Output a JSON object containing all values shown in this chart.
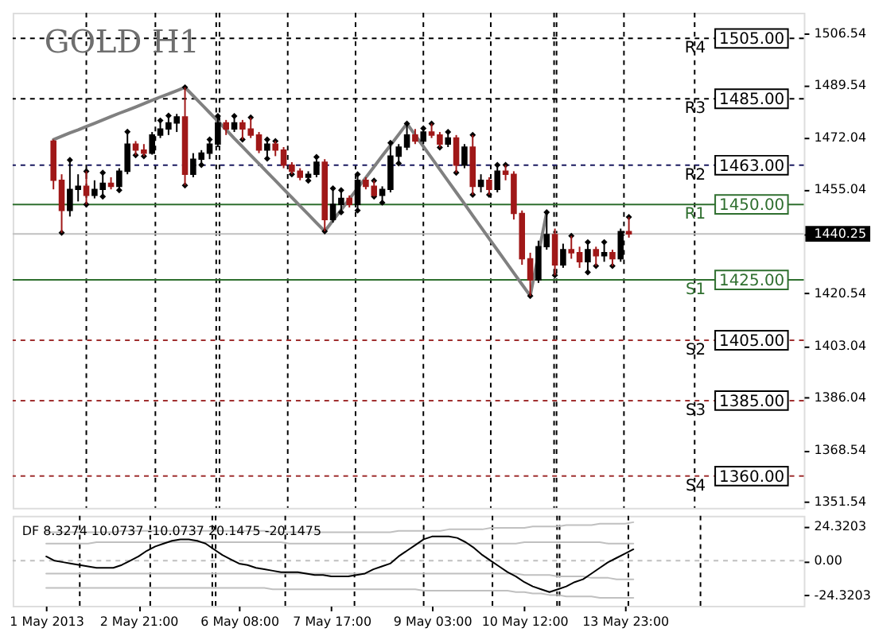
{
  "chart_data": [
    {
      "type": "candlestick",
      "title": "GOLD H1",
      "categories": [
        null,
        null,
        null,
        null,
        null,
        null,
        null,
        null,
        null,
        null,
        null,
        null,
        null,
        null,
        null,
        null,
        null,
        null,
        null,
        null,
        null,
        null,
        null,
        null,
        null,
        null,
        null,
        null,
        null,
        null,
        null,
        null,
        null,
        null,
        null,
        null,
        null,
        null,
        null,
        null,
        null,
        null,
        null,
        null,
        null,
        null,
        null,
        null,
        null,
        null,
        null,
        null,
        null,
        null,
        null,
        null,
        null,
        null,
        null,
        null,
        null,
        null,
        null,
        null,
        null,
        null,
        null,
        null,
        null,
        null,
        null
      ],
      "ohlc": [
        [
          1471,
          1471.5,
          1455,
          1458
        ],
        [
          1458,
          1460,
          1440.6,
          1448
        ],
        [
          1448,
          1464.7,
          1446,
          1455
        ],
        [
          1455,
          1460,
          1451,
          1456
        ],
        [
          1456,
          1461,
          1450,
          1453
        ],
        [
          1453,
          1458,
          1452,
          1455
        ],
        [
          1455,
          1460.5,
          1452.6,
          1457
        ],
        [
          1457,
          1459,
          1455,
          1456
        ],
        [
          1456,
          1462,
          1454.7,
          1461
        ],
        [
          1461,
          1474.1,
          1460,
          1470
        ],
        [
          1470,
          1471,
          1466.3,
          1468
        ],
        [
          1468,
          1470,
          1466,
          1467
        ],
        [
          1467,
          1474,
          1466.5,
          1473
        ],
        [
          1473,
          1477.8,
          1472,
          1475
        ],
        [
          1475,
          1479.4,
          1473,
          1477
        ],
        [
          1477,
          1480,
          1474,
          1479
        ],
        [
          1479,
          1488.8,
          1456.3,
          1460
        ],
        [
          1460,
          1467,
          1459,
          1465
        ],
        [
          1465,
          1468,
          1463.1,
          1467
        ],
        [
          1467,
          1471.5,
          1465,
          1470
        ],
        [
          1470,
          1479.3,
          1469,
          1477
        ],
        [
          1477,
          1478,
          1473,
          1475
        ],
        [
          1475,
          1479.3,
          1474,
          1477
        ],
        [
          1477,
          1478,
          1471.5,
          1475
        ],
        [
          1475,
          1478.8,
          1472,
          1473
        ],
        [
          1473,
          1474,
          1467,
          1468
        ],
        [
          1468,
          1471.5,
          1465.2,
          1470
        ],
        [
          1470,
          1471,
          1466,
          1468
        ],
        [
          1468,
          1469,
          1462,
          1463
        ],
        [
          1463,
          1464,
          1460,
          1461
        ],
        [
          1461,
          1462,
          1458,
          1459
        ],
        [
          1459,
          1461,
          1457.9,
          1460
        ],
        [
          1460,
          1465.7,
          1459,
          1464
        ],
        [
          1464,
          1465,
          1441.1,
          1445
        ],
        [
          1445,
          1455.3,
          1444,
          1450
        ],
        [
          1450,
          1454.7,
          1447.4,
          1452
        ],
        [
          1452,
          1453,
          1449,
          1450
        ],
        [
          1450,
          1460,
          1448,
          1458
        ],
        [
          1458,
          1459,
          1455,
          1456
        ],
        [
          1456,
          1457.9,
          1452.6,
          1453
        ],
        [
          1453,
          1456,
          1450.6,
          1455
        ],
        [
          1455,
          1470.4,
          1454,
          1466
        ],
        [
          1466,
          1470,
          1463.6,
          1469
        ],
        [
          1469,
          1476.8,
          1468,
          1473
        ],
        [
          1473,
          1475,
          1470,
          1471
        ],
        [
          1471,
          1475.2,
          1470,
          1474
        ],
        [
          1474,
          1476.8,
          1472,
          1473
        ],
        [
          1473,
          1474,
          1468.9,
          1470
        ],
        [
          1470,
          1474,
          1469,
          1472
        ],
        [
          1472,
          1473,
          1460.5,
          1463
        ],
        [
          1463,
          1470,
          1462,
          1469
        ],
        [
          1469,
          1473,
          1453.2,
          1456
        ],
        [
          1456,
          1460,
          1454,
          1458
        ],
        [
          1458,
          1459,
          1453.2,
          1455
        ],
        [
          1455,
          1463.1,
          1454,
          1461
        ],
        [
          1461,
          1463.1,
          1458,
          1460
        ],
        [
          1460,
          1461,
          1445,
          1447
        ],
        [
          1447,
          1448,
          1430,
          1432
        ],
        [
          1432,
          1434,
          1419.7,
          1425
        ],
        [
          1425,
          1438,
          1424,
          1436
        ],
        [
          1436,
          1447.4,
          1435,
          1440
        ],
        [
          1440,
          1442,
          1426.5,
          1430
        ],
        [
          1430,
          1437,
          1429,
          1435
        ],
        [
          1435,
          1439.6,
          1432,
          1434
        ],
        [
          1434,
          1436,
          1429,
          1431
        ],
        [
          1431,
          1437.5,
          1427.5,
          1435
        ],
        [
          1435,
          1436,
          1429.6,
          1433
        ],
        [
          1433,
          1437.5,
          1431,
          1434
        ],
        [
          1434,
          1435,
          1429.6,
          1432
        ],
        [
          1432,
          1442,
          1431,
          1441
        ],
        [
          1441,
          1445.8,
          1439,
          1440.25
        ]
      ],
      "colors": [
        "#a01818",
        "#a01818",
        "#000000",
        "#000000",
        "#a01818",
        "#000000",
        "#000000",
        "#a01818",
        "#000000",
        "#000000",
        "#a01818",
        "#a01818",
        "#000000",
        "#000000",
        "#000000",
        "#000000",
        "#a01818",
        "#000000",
        "#000000",
        "#000000",
        "#000000",
        "#a01818",
        "#000000",
        "#a01818",
        "#a01818",
        "#a01818",
        "#000000",
        "#a01818",
        "#a01818",
        "#a01818",
        "#a01818",
        "#000000",
        "#000000",
        "#a01818",
        "#000000",
        "#000000",
        "#a01818",
        "#000000",
        "#a01818",
        "#a01818",
        "#000000",
        "#000000",
        "#000000",
        "#000000",
        "#a01818",
        "#000000",
        "#a01818",
        "#a01818",
        "#000000",
        "#a01818",
        "#000000",
        "#a01818",
        "#000000",
        "#a01818",
        "#000000",
        "#a01818",
        "#a01818",
        "#a01818",
        "#a01818",
        "#000000",
        "#000000",
        "#a01818",
        "#000000",
        "#a01818",
        "#a01818",
        "#000000",
        "#a01818",
        "#000000",
        "#a01818",
        "#000000",
        "#a01818"
      ],
      "series": [
        {
          "type": "line",
          "color": "#808080",
          "values": [
            1471.5,
            1472.6,
            1473.7,
            1474.7,
            1475.8,
            1476.9,
            1478.0,
            1479.1,
            1480.2,
            1481.2,
            1482.3,
            1483.4,
            1484.5,
            1485.6,
            1486.6,
            1487.7,
            1488.8,
            1486.0,
            1483.2,
            1480.4,
            1477.6,
            1474.8,
            1471.9,
            1469.1,
            1466.3,
            1463.5,
            1460.7,
            1457.9,
            1455.1,
            1452.3,
            1449.5,
            1446.7,
            1443.9,
            1441.1,
            1444.7,
            1448.2,
            1451.8,
            1455.4,
            1458.9,
            1462.5,
            1466.1,
            1469.6,
            1473.2,
            1476.8,
            1473.0,
            1469.2,
            1465.4,
            1461.6,
            1457.8,
            1454.0,
            1450.2,
            1446.3,
            1442.5,
            1438.7,
            1434.9,
            1431.1,
            1427.3,
            1423.5,
            1419.7,
            1433.6,
            1447.4,
            null,
            null,
            null,
            null,
            null,
            null,
            null,
            null,
            null,
            null
          ]
        },
        {
          "type": "scatter",
          "color": "#000000",
          "marker": "diamond",
          "values": [
            null,
            null,
            1464.7,
            null,
            1461,
            null,
            1460.5,
            null,
            null,
            1474.1,
            null,
            null,
            null,
            1477.8,
            1479.4,
            null,
            1488.8,
            null,
            null,
            1471.5,
            1479.3,
            null,
            1479.3,
            null,
            1478.8,
            null,
            1471.5,
            1471,
            null,
            null,
            null,
            null,
            1465.7,
            null,
            1455.3,
            1454.7,
            null,
            1460,
            null,
            1457.9,
            null,
            1470.4,
            null,
            1476.8,
            null,
            1475.2,
            1476.8,
            null,
            1474,
            null,
            null,
            1473,
            null,
            null,
            1463.1,
            1463.1,
            null,
            null,
            null,
            null,
            1447.4,
            null,
            null,
            1439.6,
            null,
            1437.5,
            null,
            1437.5,
            null,
            null,
            1445.8
          ]
        },
        {
          "type": "scatter",
          "color": "#000000",
          "marker": "diamond",
          "values": [
            null,
            1440.6,
            null,
            null,
            1450,
            null,
            1452.6,
            null,
            1454.7,
            null,
            1466.3,
            1466,
            null,
            null,
            null,
            null,
            1456.3,
            null,
            1463.1,
            null,
            null,
            null,
            null,
            1471.5,
            null,
            null,
            1465.2,
            null,
            null,
            1460,
            null,
            1457.9,
            null,
            1441.1,
            null,
            1447.4,
            null,
            1448,
            null,
            1452.6,
            1450.6,
            null,
            1463.6,
            null,
            null,
            null,
            null,
            1468.9,
            null,
            1460.5,
            null,
            1453.2,
            null,
            1453.2,
            null,
            null,
            null,
            null,
            1419.7,
            null,
            null,
            1426.5,
            null,
            null,
            null,
            1427.5,
            1429.6,
            null,
            1429.6,
            null,
            null
          ]
        }
      ],
      "ylim": [
        1349.5,
        1513.5
      ],
      "yticks": [
        1506.54,
        1489.54,
        1472.04,
        1455.04,
        1440.25,
        1420.54,
        1403.04,
        1386.04,
        1368.54,
        1351.54
      ],
      "y2lim": [
        1349.5,
        1513.5
      ],
      "y2ticks": [
        {
          "value": 1505,
          "label": "1505.00"
        },
        {
          "value": 1485,
          "label": "1485.00"
        },
        {
          "value": 1463,
          "label": "1463.00"
        },
        {
          "value": 1450,
          "label": "1450.00"
        },
        {
          "value": 1425,
          "label": "1425.00"
        },
        {
          "value": 1405,
          "label": "1405.00"
        },
        {
          "value": 1385,
          "label": "1385.00"
        },
        {
          "value": 1360,
          "label": "1360.00"
        }
      ],
      "tick_labels": "y",
      "grid": "x",
      "ref_lines": [
        {
          "axis": "y",
          "value": 1505,
          "label": "R4",
          "color": "#000000",
          "line_style": "dashed"
        },
        {
          "axis": "y",
          "value": 1485,
          "label": "R3",
          "color": "#000000",
          "line_style": "dashed"
        },
        {
          "axis": "y",
          "value": 1463,
          "label": "R2",
          "color": "#1a1a60",
          "line_style": "dashed"
        },
        {
          "axis": "y",
          "value": 1450,
          "label": "R1",
          "color": "#2f6f2f",
          "line_style": "solid"
        },
        {
          "axis": "y",
          "value": 1440.25,
          "color": "#c0c0c0",
          "line_style": "solid"
        },
        {
          "axis": "y",
          "value": 1425,
          "label": "S1",
          "color": "#2f6f2f",
          "line_style": "solid"
        },
        {
          "axis": "y",
          "value": 1405,
          "label": "S2",
          "color": "#a03030",
          "line_style": "dashed"
        },
        {
          "axis": "y",
          "value": 1385,
          "label": "S3",
          "color": "#a03030",
          "line_style": "dashed"
        },
        {
          "axis": "y",
          "value": 1360,
          "label": "S4",
          "color": "#a03030",
          "line_style": "dashed"
        }
      ]
    },
    {
      "type": "line",
      "title": "DF 8.3274 10.0737 -10.0737 20.1475 -20.1475",
      "categories": [
        "1 May 2013",
        null,
        null,
        null,
        null,
        null,
        null,
        null,
        null,
        null,
        null,
        "2 May 21:00",
        null,
        null,
        null,
        null,
        null,
        null,
        null,
        null,
        null,
        null,
        null,
        "6 May 08:00",
        null,
        null,
        null,
        null,
        null,
        null,
        null,
        null,
        null,
        null,
        "7 May 17:00",
        null,
        null,
        null,
        null,
        null,
        null,
        null,
        null,
        null,
        null,
        null,
        "9 May 03:00",
        null,
        null,
        null,
        null,
        null,
        null,
        null,
        null,
        null,
        null,
        "10 May 12:00",
        null,
        null,
        null,
        null,
        null,
        null,
        null,
        null,
        null,
        null,
        null,
        "13 May 23:00",
        null
      ],
      "series": [
        {
          "color": "#c0c0c0",
          "values": [
            20,
            20,
            20,
            20,
            20,
            20,
            20,
            20,
            20,
            21,
            21,
            21,
            21,
            21,
            21,
            21,
            21,
            21,
            21,
            21,
            21,
            21,
            21,
            21,
            21,
            21,
            21,
            20,
            20,
            20,
            20,
            20,
            20,
            20,
            20,
            20,
            20,
            20,
            20,
            20,
            20,
            20,
            21,
            21,
            21,
            21,
            21,
            21,
            22,
            22,
            22,
            22,
            22,
            23,
            23,
            23,
            23,
            23,
            24,
            24,
            24,
            24,
            25,
            25,
            25,
            25,
            26,
            26,
            26,
            26,
            27
          ]
        },
        {
          "color": "#c0c0c0",
          "values": [
            12,
            12,
            12,
            12,
            12,
            12,
            13,
            13,
            13,
            13,
            13,
            13,
            13,
            13,
            13,
            13,
            13,
            13,
            13,
            13,
            13,
            13,
            13,
            13,
            13,
            13,
            13,
            13,
            13,
            12,
            12,
            12,
            12,
            12,
            12,
            12,
            12,
            12,
            12,
            12,
            12,
            12,
            12,
            12,
            12,
            12,
            12,
            12,
            12,
            12,
            12,
            12,
            12,
            12,
            12,
            12,
            12,
            13,
            13,
            13,
            13,
            13,
            13,
            13,
            13,
            13,
            13,
            12,
            12,
            12,
            12
          ]
        },
        {
          "color": "#c0c0c0",
          "values": [
            -9,
            -9,
            -9,
            -9,
            -9,
            -9,
            -9,
            -9,
            -9,
            -9,
            -9,
            -9,
            -9,
            -9,
            -9,
            -9,
            -9,
            -9,
            -9,
            -9,
            -9,
            -9,
            -9,
            -9,
            -9,
            -9,
            -9,
            -9,
            -9,
            -9,
            -9,
            -9,
            -9,
            -9,
            -9,
            -9,
            -9,
            -9,
            -9,
            -9,
            -9,
            -9,
            -9,
            -9,
            -9,
            -9,
            -9,
            -9,
            -9,
            -9,
            -9,
            -9,
            -9,
            -9,
            -9,
            -9,
            -9,
            -10,
            -10,
            -10,
            -10,
            -11,
            -11,
            -11,
            -11,
            -12,
            -12,
            -12,
            -13,
            -13,
            -13
          ]
        },
        {
          "color": "#c0c0c0",
          "values": [
            -19,
            -19,
            -19,
            -19,
            -19,
            -19,
            -19,
            -19,
            -19,
            -19,
            -19,
            -19,
            -19,
            -19,
            -19,
            -19,
            -19,
            -19,
            -19,
            -19,
            -19,
            -19,
            -19,
            -19,
            -19,
            -19,
            -19,
            -20,
            -20,
            -20,
            -20,
            -20,
            -20,
            -20,
            -20,
            -20,
            -20,
            -20,
            -20,
            -20,
            -20,
            -20,
            -20,
            -20,
            -20,
            -21,
            -21,
            -21,
            -21,
            -21,
            -21,
            -21,
            -21,
            -21,
            -21,
            -21,
            -22,
            -22,
            -23,
            -23,
            -24,
            -24,
            -25,
            -25,
            -25,
            -25,
            -26,
            -26,
            -26,
            -26,
            -26
          ]
        },
        {
          "color": "#000000",
          "values": [
            3,
            0,
            -1,
            -2,
            -3,
            -4,
            -5,
            -5,
            -5,
            -3,
            0,
            3,
            7,
            10,
            12,
            14,
            15,
            15,
            14,
            12,
            8,
            4,
            1,
            -2,
            -3,
            -5,
            -6,
            -7,
            -8,
            -8,
            -8,
            -9,
            -10,
            -10,
            -11,
            -11,
            -11,
            -10,
            -9,
            -6,
            -4,
            -2,
            3,
            7,
            11,
            15,
            17,
            17,
            17,
            16,
            13,
            9,
            4,
            0,
            -4,
            -8,
            -11,
            -15,
            -18,
            -20,
            -22,
            -20,
            -18,
            -15,
            -13,
            -9,
            -5,
            -1,
            2,
            5,
            8
          ]
        }
      ],
      "ylim": [
        -31.6,
        31.6
      ],
      "yticks": [
        24.3203,
        {
          "value": 0,
          "label": "0.00"
        },
        -24.3203
      ],
      "grid": "x",
      "ref_lines": [
        {
          "axis": "y",
          "value": 0,
          "color": "#c0c0c0",
          "line_style": "dashed"
        }
      ]
    }
  ]
}
